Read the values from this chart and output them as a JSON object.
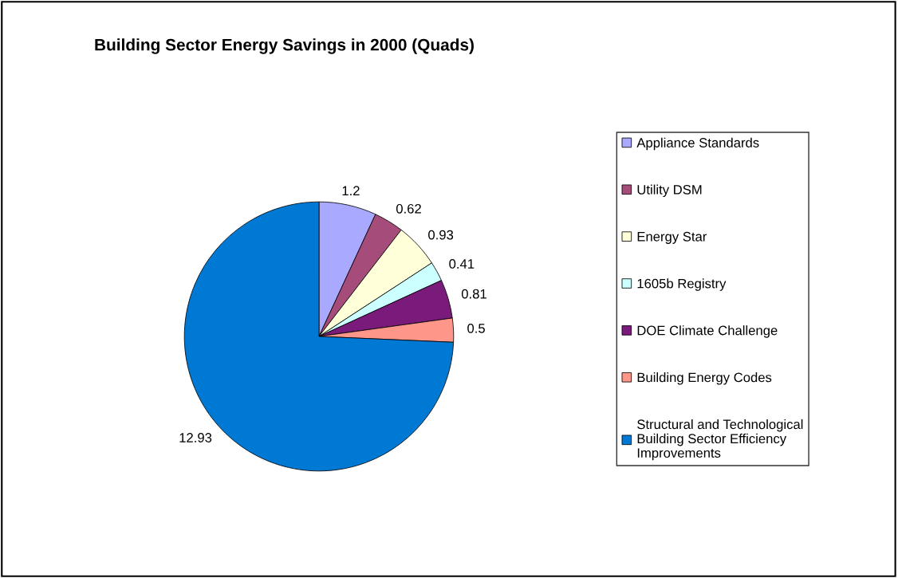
{
  "chart_data": {
    "type": "pie",
    "title": "Building Sector Energy Savings in 2000 (Quads)",
    "categories": [
      "Appliance Standards",
      "Utility DSM",
      "Energy Star",
      "1605b Registry",
      "DOE Climate Challenge",
      "Building Energy Codes",
      "Structural and Technological\nBuilding Sector Efficiency\nImprovements"
    ],
    "values": [
      1.2,
      0.62,
      0.93,
      0.41,
      0.81,
      0.5,
      12.93
    ],
    "colors": [
      "#a9a9ff",
      "#a64c7a",
      "#ffffd9",
      "#ccffff",
      "#7a1a7a",
      "#ff968a",
      "#0079d4"
    ],
    "data_labels": true,
    "legend": "right"
  }
}
